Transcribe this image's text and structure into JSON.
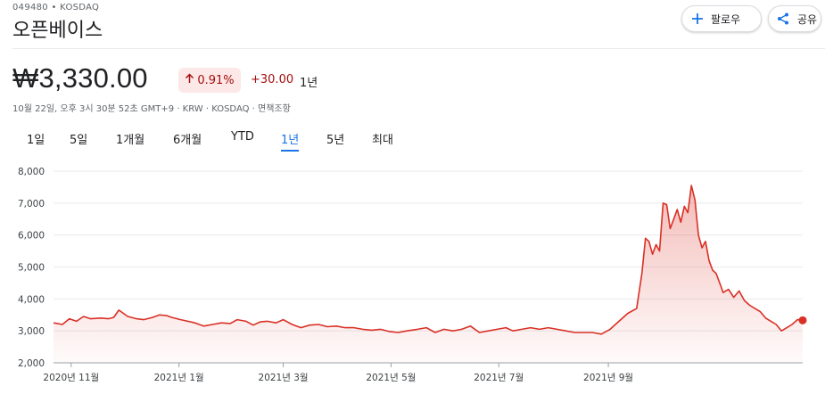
{
  "header": {
    "ticker": "049480 • KOSDAQ",
    "name": "오픈베이스",
    "follow_label": "팔로우",
    "share_label": "공유"
  },
  "quote": {
    "price": "₩3,330.00",
    "change_percent": "0.91%",
    "change_abs": "+30.00",
    "period": "1년",
    "meta": "10월 22일, 오후 3시 30분 52초 GMT+9 · KRW · KOSDAQ · 면책조항",
    "up_color": "#a50e0e",
    "up_bg": "#fce8e6"
  },
  "tabs": [
    {
      "label": "1일",
      "active": false
    },
    {
      "label": "5일",
      "active": false
    },
    {
      "label": "1개월",
      "active": false
    },
    {
      "label": "6개월",
      "active": false
    },
    {
      "label": "YTD",
      "active": false
    },
    {
      "label": "1년",
      "active": true
    },
    {
      "label": "5년",
      "active": false
    },
    {
      "label": "최대",
      "active": false
    }
  ],
  "chart_data": {
    "type": "area",
    "ylim": [
      2000,
      8000
    ],
    "yticks": [
      "8,000",
      "7,000",
      "6,000",
      "5,000",
      "4,000",
      "3,000",
      "2,000"
    ],
    "ytick_values": [
      8000,
      7000,
      6000,
      5000,
      4000,
      3000,
      2000
    ],
    "xticks": [
      "2020년 11월",
      "2021년 1월",
      "2021년 3월",
      "2021년 5월",
      "2021년 7월",
      "2021년 9월"
    ],
    "xtick_dates": [
      "2020-11-01",
      "2021-01-01",
      "2021-03-01",
      "2021-05-01",
      "2021-07-01",
      "2021-09-01"
    ],
    "line_color": "#d93025",
    "grid": true,
    "points": [
      [
        "2020-10-22",
        3250
      ],
      [
        "2020-10-27",
        3200
      ],
      [
        "2020-10-31",
        3380
      ],
      [
        "2020-11-04",
        3300
      ],
      [
        "2020-11-08",
        3450
      ],
      [
        "2020-11-12",
        3380
      ],
      [
        "2020-11-18",
        3400
      ],
      [
        "2020-11-22",
        3380
      ],
      [
        "2020-11-25",
        3420
      ],
      [
        "2020-11-28",
        3650
      ],
      [
        "2020-12-03",
        3450
      ],
      [
        "2020-12-08",
        3380
      ],
      [
        "2020-12-12",
        3350
      ],
      [
        "2020-12-17",
        3420
      ],
      [
        "2020-12-21",
        3500
      ],
      [
        "2020-12-25",
        3480
      ],
      [
        "2020-12-28",
        3420
      ],
      [
        "2021-01-02",
        3350
      ],
      [
        "2021-01-06",
        3300
      ],
      [
        "2021-01-10",
        3250
      ],
      [
        "2021-01-15",
        3150
      ],
      [
        "2021-01-20",
        3200
      ],
      [
        "2021-01-25",
        3250
      ],
      [
        "2021-01-30",
        3230
      ],
      [
        "2021-02-03",
        3350
      ],
      [
        "2021-02-08",
        3300
      ],
      [
        "2021-02-12",
        3180
      ],
      [
        "2021-02-16",
        3280
      ],
      [
        "2021-02-20",
        3300
      ],
      [
        "2021-02-25",
        3250
      ],
      [
        "2021-03-01",
        3350
      ],
      [
        "2021-03-06",
        3200
      ],
      [
        "2021-03-11",
        3100
      ],
      [
        "2021-03-16",
        3180
      ],
      [
        "2021-03-21",
        3200
      ],
      [
        "2021-03-26",
        3130
      ],
      [
        "2021-03-31",
        3150
      ],
      [
        "2021-04-05",
        3100
      ],
      [
        "2021-04-10",
        3100
      ],
      [
        "2021-04-15",
        3050
      ],
      [
        "2021-04-20",
        3020
      ],
      [
        "2021-04-25",
        3050
      ],
      [
        "2021-04-30",
        2980
      ],
      [
        "2021-05-05",
        2950
      ],
      [
        "2021-05-10",
        3000
      ],
      [
        "2021-05-16",
        3050
      ],
      [
        "2021-05-21",
        3100
      ],
      [
        "2021-05-26",
        2950
      ],
      [
        "2021-05-31",
        3050
      ],
      [
        "2021-06-05",
        3000
      ],
      [
        "2021-06-10",
        3050
      ],
      [
        "2021-06-15",
        3150
      ],
      [
        "2021-06-20",
        2950
      ],
      [
        "2021-06-25",
        3000
      ],
      [
        "2021-06-30",
        3050
      ],
      [
        "2021-07-05",
        3100
      ],
      [
        "2021-07-09",
        3000
      ],
      [
        "2021-07-14",
        3050
      ],
      [
        "2021-07-19",
        3100
      ],
      [
        "2021-07-24",
        3050
      ],
      [
        "2021-07-29",
        3100
      ],
      [
        "2021-08-03",
        3050
      ],
      [
        "2021-08-08",
        3000
      ],
      [
        "2021-08-13",
        2950
      ],
      [
        "2021-08-18",
        2950
      ],
      [
        "2021-08-23",
        2950
      ],
      [
        "2021-08-28",
        2900
      ],
      [
        "2021-09-02",
        3050
      ],
      [
        "2021-09-07",
        3300
      ],
      [
        "2021-09-12",
        3550
      ],
      [
        "2021-09-17",
        3700
      ],
      [
        "2021-09-20",
        4800
      ],
      [
        "2021-09-22",
        5900
      ],
      [
        "2021-09-24",
        5800
      ],
      [
        "2021-09-26",
        5400
      ],
      [
        "2021-09-28",
        5700
      ],
      [
        "2021-09-30",
        5500
      ],
      [
        "2021-10-02",
        7000
      ],
      [
        "2021-10-04",
        6950
      ],
      [
        "2021-10-06",
        6200
      ],
      [
        "2021-10-08",
        6500
      ],
      [
        "2021-10-10",
        6800
      ],
      [
        "2021-10-12",
        6400
      ],
      [
        "2021-10-14",
        6900
      ],
      [
        "2021-10-16",
        6700
      ],
      [
        "2021-10-18",
        7550
      ],
      [
        "2021-10-20",
        7100
      ],
      [
        "2021-10-22",
        6000
      ],
      [
        "2021-10-24",
        5600
      ],
      [
        "2021-10-26",
        5800
      ],
      [
        "2021-10-28",
        5200
      ],
      [
        "2021-10-30",
        4900
      ],
      [
        "2021-11-01",
        4800
      ],
      [
        "2021-11-03",
        4500
      ],
      [
        "2021-11-05",
        4200
      ],
      [
        "2021-11-08",
        4300
      ],
      [
        "2021-11-11",
        4050
      ],
      [
        "2021-11-14",
        4250
      ],
      [
        "2021-11-17",
        3950
      ],
      [
        "2021-11-20",
        3800
      ],
      [
        "2021-11-23",
        3700
      ],
      [
        "2021-11-26",
        3600
      ],
      [
        "2021-11-29",
        3400
      ],
      [
        "2021-12-02",
        3300
      ],
      [
        "2021-12-05",
        3200
      ],
      [
        "2021-12-08",
        3000
      ],
      [
        "2021-12-11",
        3100
      ],
      [
        "2021-12-14",
        3200
      ],
      [
        "2021-12-17",
        3350
      ],
      [
        "2021-12-20",
        3330
      ]
    ]
  }
}
